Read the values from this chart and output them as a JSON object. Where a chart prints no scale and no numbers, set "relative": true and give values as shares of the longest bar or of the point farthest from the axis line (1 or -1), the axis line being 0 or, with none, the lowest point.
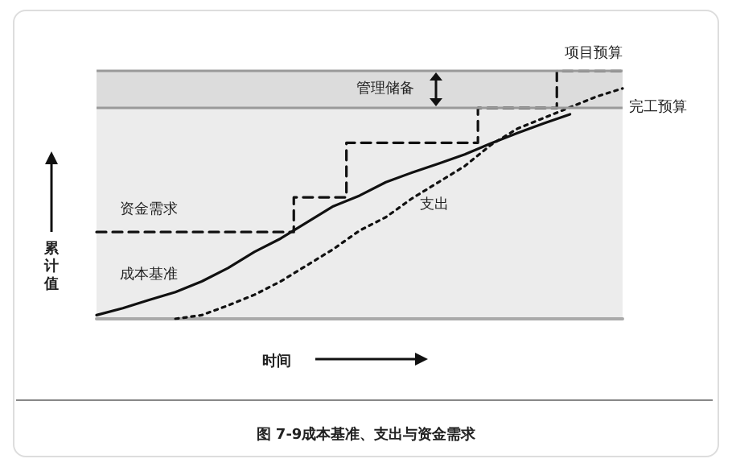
{
  "chart_data": {
    "type": "line",
    "title": "图 7-9成本基准、支出与资金需求",
    "xlabel": "时间",
    "ylabel": "累计值",
    "relative": true,
    "tick_labels": false,
    "grid": false,
    "marker": "none",
    "categories": [
      null,
      null,
      null,
      null,
      null,
      null,
      null,
      null,
      null,
      null,
      null,
      null,
      null,
      null,
      null,
      null,
      null,
      null,
      null,
      null,
      null
    ],
    "series": [
      {
        "name": "资金需求",
        "type": "step",
        "color": "#111111",
        "line_style": "dashed",
        "values": [
          0.35,
          0.35,
          0.35,
          0.35,
          0.35,
          0.35,
          0.35,
          0.35,
          0.49,
          0.49,
          0.71,
          0.71,
          0.71,
          0.71,
          0.71,
          0.85,
          0.85,
          0.85,
          1,
          1,
          1
        ]
      },
      {
        "name": "成本基准",
        "type": "line",
        "color": "#111111",
        "line_style": "solid",
        "values": [
          0.015,
          0.043,
          0.076,
          0.108,
          0.151,
          0.205,
          0.27,
          0.324,
          0.389,
          0.454,
          0.497,
          0.551,
          0.59,
          0.626,
          0.663,
          0.708,
          0.749,
          0.788,
          0.825,
          null,
          null
        ]
      },
      {
        "name": "支出",
        "type": "line",
        "color": "#111111",
        "line_style": "dotted",
        "values": [
          null,
          null,
          null,
          0,
          0.015,
          0.054,
          0.097,
          0.151,
          0.216,
          0.281,
          0.356,
          0.41,
          0.486,
          0.551,
          0.616,
          0.702,
          0.767,
          0.81,
          0.853,
          0.896,
          0.929
        ]
      }
    ],
    "ref_lines": [
      {
        "axis": "y",
        "value": 1,
        "label": "项目预算",
        "color": "#999999"
      },
      {
        "axis": "y",
        "value": 0.85,
        "label": "完工预算",
        "color": "#999999"
      }
    ],
    "bands": [
      {
        "axis": "y",
        "from": 0.85,
        "to": 1,
        "label": "管理储备",
        "color": "#dcdcdc"
      },
      {
        "axis": "y",
        "from": 0,
        "to": 0.85,
        "color": "#ececec"
      }
    ]
  }
}
